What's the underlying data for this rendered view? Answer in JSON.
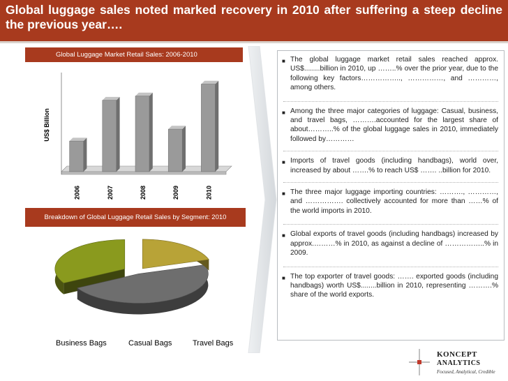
{
  "header": {
    "title": "Global luggage sales noted marked recovery in 2010 after suffering a steep decline the previous year…."
  },
  "chart_data": [
    {
      "type": "bar",
      "title": "Global Luggage Market Retail Sales: 2006-2010",
      "ylabel": "US$ Billion",
      "categories": [
        "2006",
        "2007",
        "2008",
        "2009",
        "2010"
      ],
      "values": [
        36,
        84,
        89,
        50,
        103
      ],
      "ylim": [
        0,
        110
      ],
      "grid": false,
      "bar_color": "#9a9a9a"
    },
    {
      "type": "pie",
      "title": "Breakdown of Global Luggage Retail Sales by Segment: 2010",
      "labels": [
        "Business Bags",
        "Casual Bags",
        "Travel Bags"
      ],
      "values": [
        33,
        47,
        20
      ],
      "colors": [
        "#8a9a1e",
        "#6e6e6e",
        "#b8a337"
      ]
    }
  ],
  "bullets": [
    "The global luggage market retail sales reached approx. US$........billion in 2010, up ……..% over the prior year, due to the following key factors…………….., ……………, and …………, among others.",
    "Among the three major categories of luggage: Casual, business, and travel bags, ……….accounted for the largest share of about………..% of the global luggage sales in 2010, immediately followed by…………",
    "Imports of travel goods (including handbags), world over, increased by about …….% to reach US$ ……. ..billion for 2010.",
    "The three major luggage importing countries: ………., …………, and ……………. collectively accounted for more than ……% of the world imports in 2010.",
    "Global exports of travel goods (including handbags) increased by approx.………% in 2010, as against a decline of ……………..% in 2009.",
    "The top exporter of travel goods: ……. exported goods (including handbags) worth US$........billion in 2010, representing ……….% share of the world exports."
  ],
  "logo": {
    "name_line1": "KONCEPT",
    "name_line2": "ANALYTICS",
    "tagline": "Focused, Analytical, Credible"
  },
  "colors": {
    "brand": "#a83a1e",
    "panel_border": "#b8bcc0"
  }
}
